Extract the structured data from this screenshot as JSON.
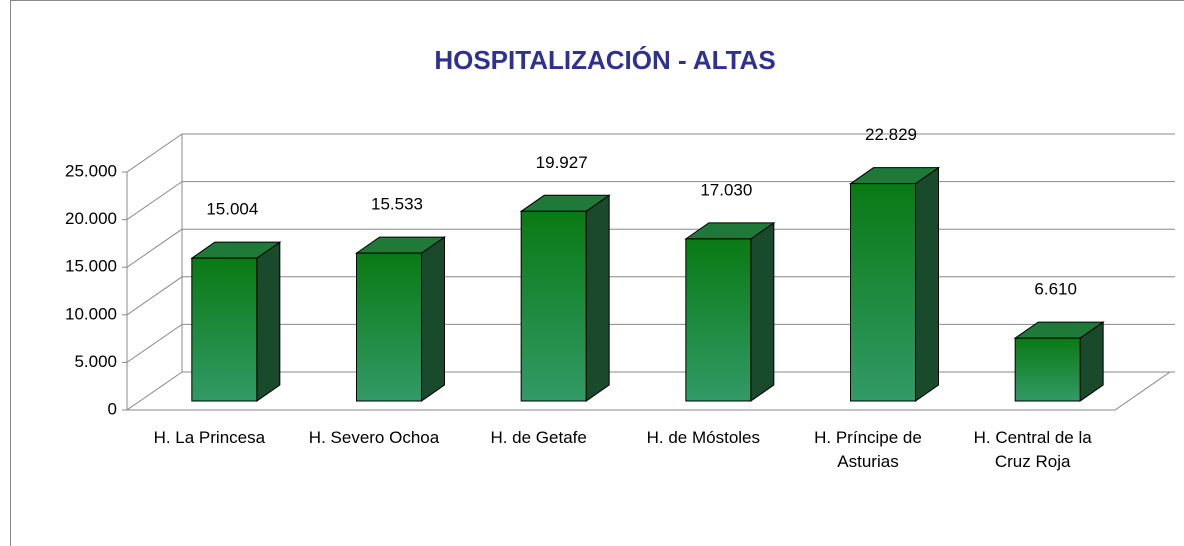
{
  "chart_data": {
    "type": "bar3d",
    "title": "HOSPITALIZACIÓN - ALTAS",
    "categories": [
      "H. La Princesa",
      "H. Severo Ochoa",
      "H. de Getafe",
      "H. de Móstoles",
      "H. Príncipe de Asturias",
      "H. Central de la Cruz Roja"
    ],
    "values": [
      15004,
      15533,
      19927,
      17030,
      22829,
      6610
    ],
    "value_labels": [
      "15.004",
      "15.533",
      "19.927",
      "17.030",
      "22.829",
      "6.610"
    ],
    "color": "#1a8a30",
    "ylim": [
      0,
      25000
    ],
    "yticks": [
      0,
      {
        "value": 5000,
        "label": "5.000"
      },
      {
        "value": 10000,
        "label": "10.000"
      },
      {
        "value": 15000,
        "label": "15.000"
      },
      {
        "value": 20000,
        "label": "20.000"
      },
      {
        "value": 25000,
        "label": "25.000"
      }
    ],
    "grid": true
  }
}
